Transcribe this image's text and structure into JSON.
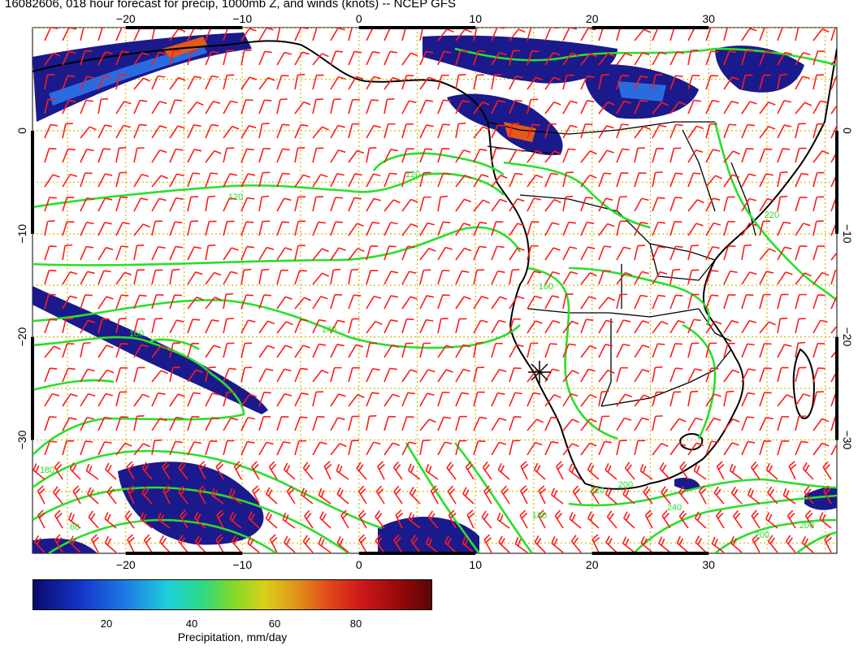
{
  "title": "16082606, 018 hour forecast for precip, 1000mb Z, and winds (knots) -- NCEP GFS",
  "map": {
    "lon_range": [
      -28,
      41
    ],
    "lat_range": [
      -41,
      10
    ],
    "lon_ticks": [
      -20,
      -10,
      0,
      10,
      20,
      30
    ],
    "lat_ticks": [
      0,
      -10,
      -20,
      -30
    ],
    "lon_tick_labels": [
      "−20",
      "−10",
      "0",
      "10",
      "20",
      "30"
    ],
    "lat_tick_labels": [
      "0",
      "−10",
      "−20",
      "−30"
    ],
    "grid": true,
    "colors": {
      "precip_low": "#1a1a8c",
      "precip_high": "#a00000",
      "contour": "#2adf2a",
      "wind_barb": "#ff1a1a",
      "coastline": "#000000",
      "grid": "#d6b800"
    },
    "contour_labels": [
      "120",
      "120",
      "140",
      "160",
      "160",
      "180",
      "60",
      "200",
      "220",
      "240",
      "180",
      "200",
      "200",
      "220"
    ],
    "wind_marker_icon": "star-icon"
  },
  "colorbar": {
    "range": [
      0,
      100
    ],
    "ticks": [
      "20",
      "40",
      "60",
      "80"
    ],
    "label": "Precipitation, mm/day"
  }
}
